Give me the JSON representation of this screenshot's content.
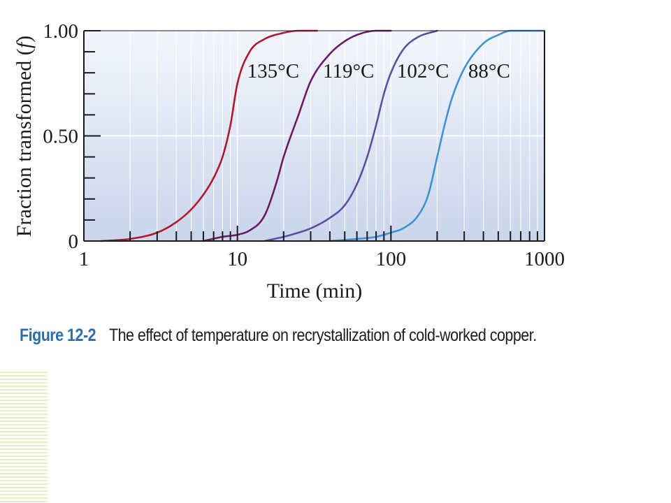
{
  "chart_data": {
    "type": "line",
    "xlabel": "Time (min)",
    "ylabel": "Fraction transformed (f)",
    "ylabel_parts": {
      "text": "Fraction transformed (",
      "italic": "f",
      "close": ")"
    },
    "x_scale": "log",
    "xlim": [
      1,
      1000
    ],
    "ylim": [
      0,
      1
    ],
    "x_ticks": [
      "1",
      "10",
      "100",
      "1000"
    ],
    "y_ticks": [
      "0",
      "0.50",
      "1.00"
    ],
    "grid": true,
    "series": [
      {
        "name": "135°C",
        "color": "#b0182e",
        "x": [
          1.3,
          2,
          3,
          4,
          5,
          6,
          7,
          8,
          9,
          10,
          12,
          15,
          20,
          25,
          33
        ],
        "y": [
          0.0,
          0.01,
          0.04,
          0.09,
          0.15,
          0.22,
          0.3,
          0.4,
          0.55,
          0.75,
          0.9,
          0.96,
          0.99,
          1.0,
          1.0
        ]
      },
      {
        "name": "119°C",
        "color": "#6a1a68",
        "x": [
          6,
          8,
          10,
          12,
          15,
          18,
          20,
          25,
          30,
          40,
          50,
          60,
          80,
          100
        ],
        "y": [
          0.0,
          0.02,
          0.03,
          0.05,
          0.12,
          0.28,
          0.4,
          0.6,
          0.76,
          0.89,
          0.95,
          0.98,
          1.0,
          1.0
        ]
      },
      {
        "name": "102°C",
        "color": "#5b4fa0",
        "x": [
          15,
          20,
          25,
          30,
          40,
          50,
          60,
          70,
          80,
          90,
          100,
          120,
          150,
          200
        ],
        "y": [
          0.0,
          0.02,
          0.04,
          0.06,
          0.11,
          0.17,
          0.27,
          0.4,
          0.55,
          0.7,
          0.8,
          0.91,
          0.97,
          1.0
        ]
      },
      {
        "name": "88°C",
        "color": "#3f93d2",
        "x": [
          40,
          60,
          80,
          100,
          120,
          150,
          175,
          200,
          225,
          250,
          300,
          400,
          500,
          600,
          800,
          1000
        ],
        "y": [
          0.0,
          0.01,
          0.02,
          0.04,
          0.06,
          0.12,
          0.22,
          0.4,
          0.56,
          0.68,
          0.82,
          0.94,
          0.98,
          1.0,
          1.0,
          1.0
        ]
      }
    ]
  },
  "caption": {
    "number": "Figure 12-2",
    "text": "The effect of temperature on recrystallization of cold-worked copper."
  }
}
